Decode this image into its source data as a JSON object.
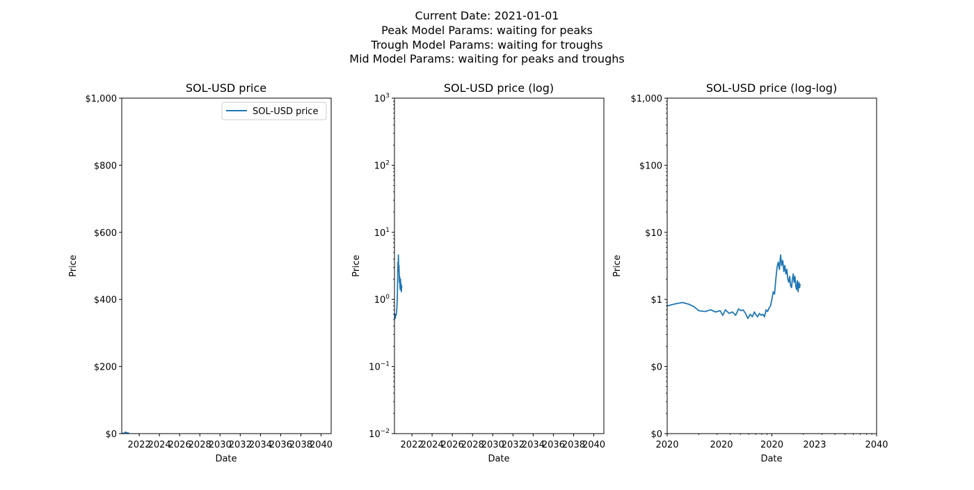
{
  "figure": {
    "suptitle_lines": [
      "Current Date: 2021-01-01",
      "Peak Model Params: waiting for peaks",
      "Trough Model Params: waiting for troughs",
      "Mid Model Params: waiting for peaks and troughs"
    ],
    "line_color": "#1f77b4"
  },
  "chart_data": [
    {
      "type": "line",
      "title": "SOL-USD price",
      "xlabel": "Date",
      "ylabel": "Price",
      "yscale": "linear",
      "xscale": "time",
      "xlim": [
        "2020-04-10",
        "2040-12-31"
      ],
      "ylim": [
        0,
        1000
      ],
      "yticks": [
        0,
        200,
        400,
        600,
        800,
        1000
      ],
      "ytick_labels": [
        "$0",
        "$200",
        "$400",
        "$600",
        "$800",
        "$1,000"
      ],
      "xticks": [
        "2022-01-01",
        "2024-01-01",
        "2026-01-01",
        "2028-01-01",
        "2030-01-01",
        "2032-01-01",
        "2034-01-01",
        "2036-01-01",
        "2038-01-01",
        "2040-01-01"
      ],
      "xtick_labels": [
        "2022",
        "2024",
        "2026",
        "2028",
        "2030",
        "2032",
        "2034",
        "2036",
        "2038",
        "2040"
      ],
      "legend": {
        "placement": "upper-right",
        "entries": [
          "SOL-USD price"
        ]
      },
      "grid": false,
      "series": [
        {
          "name": "SOL-USD price",
          "x": [
            "2020-04-10",
            "2020-05-10",
            "2020-06-10",
            "2020-07-01",
            "2020-07-15",
            "2020-08-01",
            "2020-08-15",
            "2020-08-29",
            "2020-09-10",
            "2020-09-25",
            "2020-10-10",
            "2020-10-25",
            "2020-11-10",
            "2020-11-25",
            "2020-12-10",
            "2020-12-31"
          ],
          "y": [
            0.9,
            0.75,
            0.6,
            1.0,
            2.0,
            3.5,
            4.0,
            4.5,
            3.2,
            2.8,
            2.5,
            1.8,
            2.2,
            1.5,
            1.8,
            1.5
          ]
        }
      ]
    },
    {
      "type": "line",
      "title": "SOL-USD price (log)",
      "xlabel": "Date",
      "ylabel": "Price",
      "yscale": "log",
      "xscale": "time",
      "xlim": [
        "2020-04-10",
        "2040-12-31"
      ],
      "ylim": [
        0.01,
        1000
      ],
      "yticks": [
        0.01,
        0.1,
        1,
        10,
        100,
        1000
      ],
      "ytick_base": "10",
      "ytick_exponents": [
        "−2",
        "−1",
        "0",
        "1",
        "2",
        "3"
      ],
      "xticks": [
        "2022-01-01",
        "2024-01-01",
        "2026-01-01",
        "2028-01-01",
        "2030-01-01",
        "2032-01-01",
        "2034-01-01",
        "2036-01-01",
        "2038-01-01",
        "2040-01-01"
      ],
      "xtick_labels": [
        "2022",
        "2024",
        "2026",
        "2028",
        "2030",
        "2032",
        "2034",
        "2036",
        "2038",
        "2040"
      ],
      "grid": false,
      "series": [
        {
          "name": "SOL-USD price",
          "x": [
            "2020-04-10",
            "2020-04-25",
            "2020-05-10",
            "2020-05-25",
            "2020-06-10",
            "2020-06-25",
            "2020-07-10",
            "2020-07-25",
            "2020-08-05",
            "2020-08-15",
            "2020-08-22",
            "2020-08-29",
            "2020-09-05",
            "2020-09-12",
            "2020-09-20",
            "2020-09-28",
            "2020-10-05",
            "2020-10-15",
            "2020-10-25",
            "2020-11-05",
            "2020-11-15",
            "2020-11-25",
            "2020-12-05",
            "2020-12-15",
            "2020-12-25",
            "2020-12-31"
          ],
          "y": [
            0.62,
            0.55,
            0.52,
            0.6,
            0.58,
            0.65,
            0.8,
            1.2,
            2.2,
            3.6,
            3.0,
            4.6,
            3.4,
            2.6,
            3.2,
            2.4,
            1.8,
            2.2,
            1.6,
            1.4,
            2.0,
            1.5,
            1.7,
            1.3,
            1.6,
            1.5
          ]
        }
      ]
    },
    {
      "type": "line",
      "title": "SOL-USD price (log-log)",
      "xlabel": "Date",
      "ylabel": "Price",
      "yscale": "log",
      "xscale": "log-time",
      "xlim": [
        1,
        100
      ],
      "ylim": [
        0.01,
        1000
      ],
      "yticks": [
        0.01,
        0.1,
        1,
        10,
        100,
        1000
      ],
      "ytick_labels": [
        "$0",
        "$0",
        "$1",
        "$10",
        "$100",
        "$1,000"
      ],
      "xticks_major": [
        1,
        10,
        100
      ],
      "xticks_labeled": [
        1,
        3.3,
        10,
        25.6,
        100
      ],
      "xtick_labels": [
        "2020",
        "2020",
        "2020",
        "2023",
        "2040"
      ],
      "grid": false,
      "series": [
        {
          "name": "SOL-USD price",
          "x": [
            1,
            1.2,
            1.4,
            1.6,
            1.8,
            2.0,
            2.3,
            2.6,
            2.9,
            3.2,
            3.4,
            3.6,
            3.9,
            4.2,
            4.5,
            4.8,
            5.1,
            5.3,
            5.6,
            5.9,
            6.2,
            6.5,
            6.8,
            7.0,
            7.3,
            7.6,
            7.9,
            8.2,
            8.5,
            8.8,
            9.1,
            9.4,
            9.7,
            10.0,
            10.3,
            10.6,
            10.9,
            11.2,
            11.5,
            11.8,
            12.1,
            12.4,
            12.7,
            13.0,
            13.3,
            13.6,
            13.9,
            14.2,
            14.5,
            14.8,
            15.1,
            15.4,
            15.7,
            16.0,
            16.3,
            16.6,
            16.9,
            17.2,
            17.5,
            17.8,
            18.1,
            18.4,
            18.6
          ],
          "y": [
            0.8,
            0.86,
            0.9,
            0.85,
            0.78,
            0.68,
            0.66,
            0.7,
            0.65,
            0.68,
            0.58,
            0.7,
            0.62,
            0.65,
            0.58,
            0.72,
            0.68,
            0.7,
            0.62,
            0.52,
            0.6,
            0.55,
            0.65,
            0.6,
            0.55,
            0.62,
            0.58,
            0.6,
            0.55,
            0.7,
            0.66,
            0.75,
            0.8,
            1.0,
            1.3,
            1.2,
            2.0,
            3.0,
            3.6,
            2.8,
            4.6,
            3.2,
            3.8,
            2.6,
            3.2,
            2.4,
            2.8,
            2.0,
            1.8,
            2.2,
            1.6,
            1.5,
            2.0,
            2.4,
            1.8,
            2.2,
            1.6,
            1.4,
            1.9,
            1.3,
            1.8,
            1.5,
            1.7
          ]
        }
      ]
    }
  ]
}
